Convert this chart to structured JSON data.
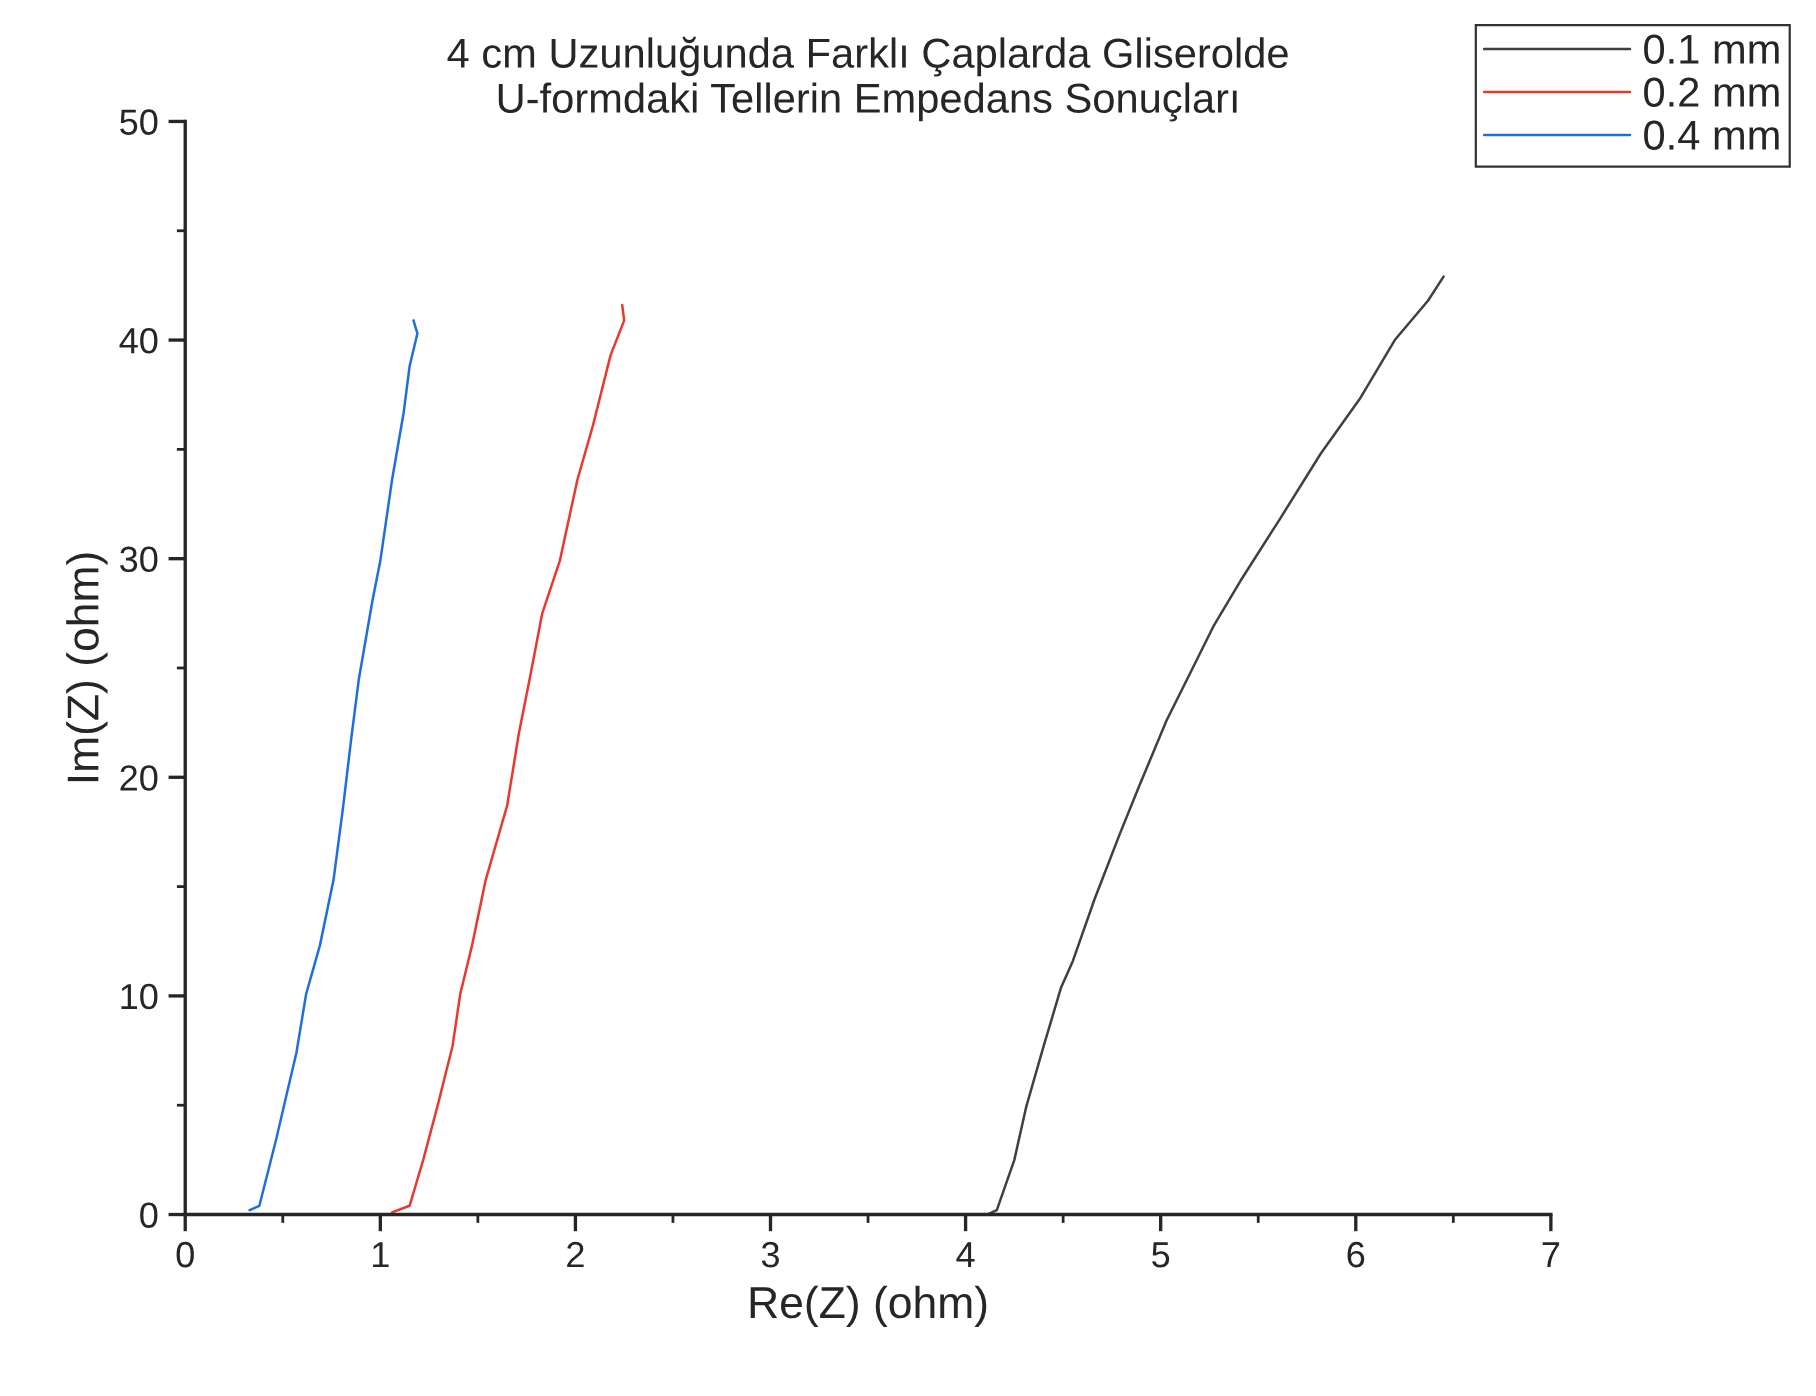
{
  "chart_data": {
    "type": "line",
    "title": "4 cm Uzunluğunda Farklı Çaplarda Gliserolde\nU-formdaki Tellerin Empedans Sonuçları",
    "xlabel": "Re(Z) (ohm)",
    "ylabel": "Im(Z) (ohm)",
    "xlim": [
      0,
      7
    ],
    "ylim": [
      0,
      50
    ],
    "xticks": [
      0,
      1,
      2,
      3,
      4,
      5,
      6,
      7
    ],
    "yticks": [
      0,
      10,
      20,
      30,
      40,
      50
    ],
    "grid": false,
    "legend": "top right",
    "marker": "none",
    "line_style": "solid",
    "series": [
      {
        "name": "0.1 mm",
        "color": "#404040",
        "x": [
          4.11,
          4.16,
          4.25,
          4.31,
          4.4,
          4.49,
          4.55,
          4.66,
          4.79,
          4.89,
          5.03,
          5.17,
          5.27,
          5.41,
          5.61,
          5.82,
          6.02,
          6.2,
          6.37,
          6.45
        ],
        "values": [
          0.0,
          0.2,
          2.5,
          4.9,
          7.7,
          10.4,
          11.6,
          14.4,
          17.4,
          19.6,
          22.6,
          25.1,
          26.9,
          29.0,
          31.8,
          34.8,
          37.3,
          40.0,
          41.8,
          42.9
        ]
      },
      {
        "name": "0.2 mm",
        "color": "#e8392f",
        "x": [
          1.06,
          1.15,
          1.22,
          1.3,
          1.37,
          1.41,
          1.47,
          1.54,
          1.65,
          1.71,
          1.77,
          1.83,
          1.92,
          2.01,
          2.09,
          2.18,
          2.25,
          2.24
        ],
        "values": [
          0.1,
          0.4,
          2.5,
          5.2,
          7.7,
          10.1,
          12.3,
          15.3,
          18.7,
          22.0,
          24.7,
          27.5,
          29.9,
          33.6,
          36.1,
          39.3,
          40.9,
          41.6
        ]
      },
      {
        "name": "0.4 mm",
        "color": "#1f6fdb",
        "x": [
          0.33,
          0.38,
          0.465,
          0.52,
          0.57,
          0.62,
          0.69,
          0.76,
          0.81,
          0.85,
          0.89,
          0.96,
          1.0,
          1.06,
          1.12,
          1.15,
          1.19,
          1.17
        ],
        "values": [
          0.2,
          0.4,
          3.4,
          5.5,
          7.4,
          10.1,
          12.3,
          15.3,
          18.7,
          21.7,
          24.5,
          28.1,
          29.9,
          33.6,
          36.7,
          38.8,
          40.3,
          40.9
        ]
      }
    ]
  }
}
